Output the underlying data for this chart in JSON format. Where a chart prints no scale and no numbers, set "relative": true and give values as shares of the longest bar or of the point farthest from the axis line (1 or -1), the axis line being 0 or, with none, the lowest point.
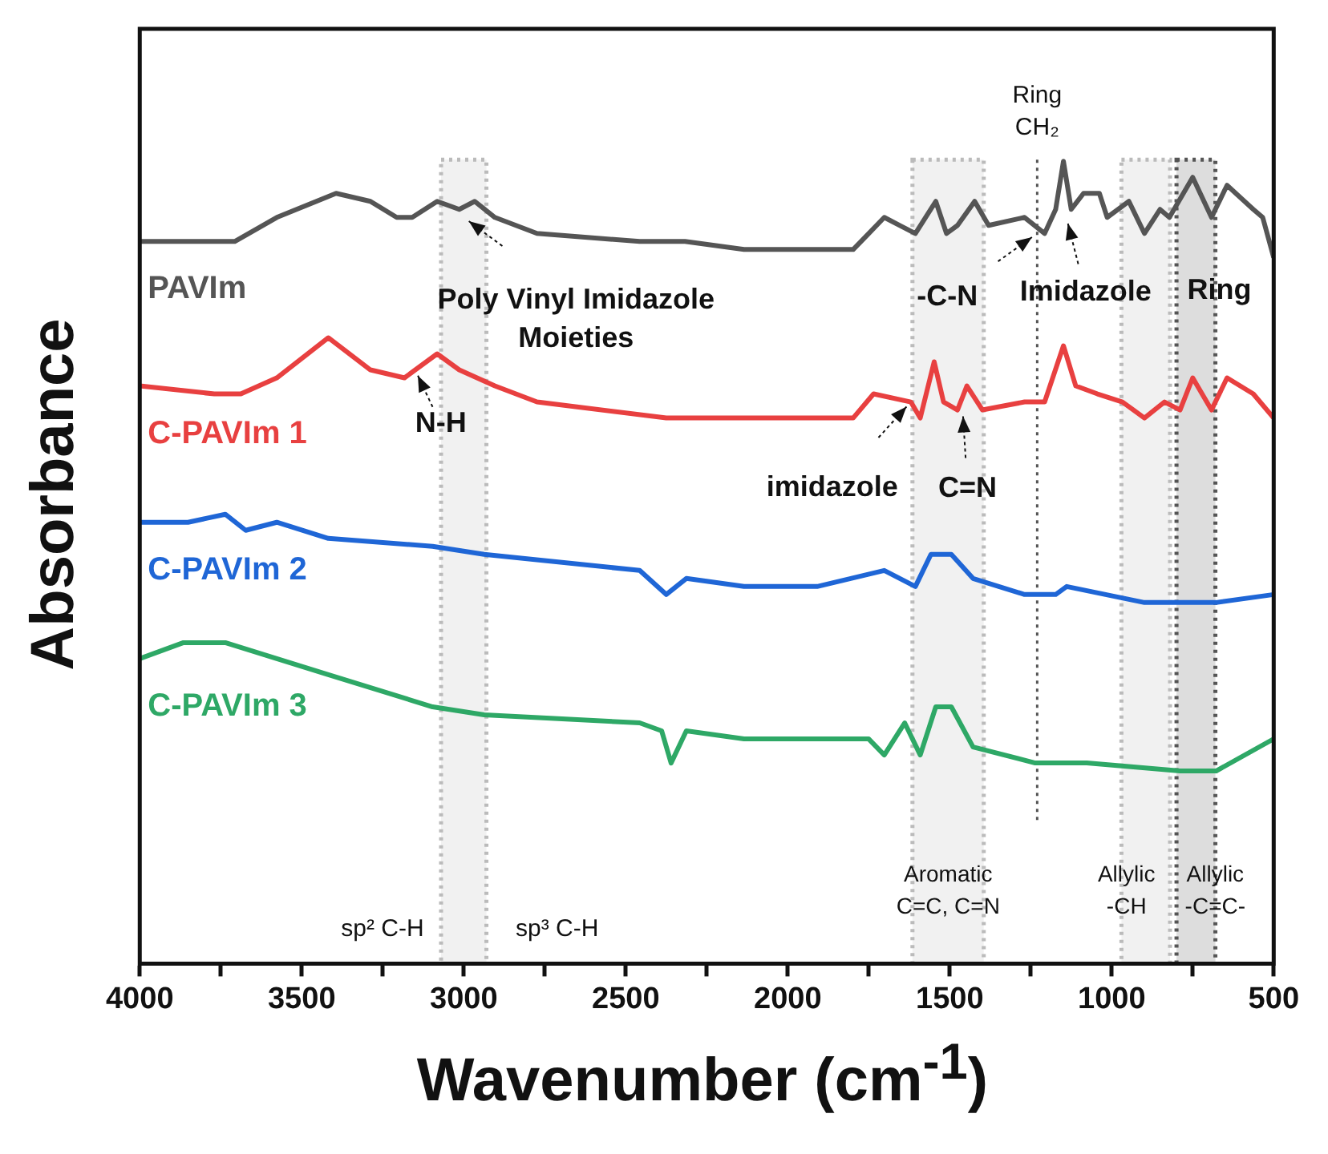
{
  "chart_data": {
    "type": "line",
    "xlabel": "Wavenumber (cm$^{-1}$)",
    "ylabel": "Absorbance",
    "relative": true,
    "legend": false,
    "marker": "none",
    "xlim": [
      4000,
      500
    ],
    "xticks": [
      4000,
      {
        "value": 3750,
        "label": null
      },
      3500,
      {
        "value": 3250,
        "label": null
      },
      3000,
      {
        "value": 2750,
        "label": null
      },
      2500,
      {
        "value": 2250,
        "label": null
      },
      2000,
      {
        "value": 1750,
        "label": null
      },
      1500,
      {
        "value": 1250,
        "label": null
      },
      1000,
      {
        "value": 750,
        "label": null
      },
      500
    ],
    "series": [
      {
        "name": "PAVIm",
        "color": "#555555",
        "x": [
          4000,
          3770,
          3707,
          3577,
          3394,
          3288,
          3207,
          3159,
          3082,
          3014,
          2966,
          2904,
          2774,
          2457,
          2317,
          2135,
          1798,
          1750,
          1702,
          1654,
          1606,
          1543,
          1510,
          1476,
          1423,
          1380,
          1269,
          1207,
          1173,
          1149,
          1125,
          1087,
          1038,
          1014,
          947,
          899,
          851,
          822,
          750,
          692,
          644,
          563,
          534,
          500
        ],
        "values": [
          0.9,
          0.9,
          0.9,
          0.93,
          0.96,
          0.95,
          0.93,
          0.93,
          0.95,
          0.94,
          0.95,
          0.93,
          0.91,
          0.9,
          0.9,
          0.89,
          0.89,
          0.91,
          0.93,
          0.92,
          0.91,
          0.95,
          0.91,
          0.92,
          0.95,
          0.92,
          0.93,
          0.91,
          0.94,
          1.0,
          0.94,
          0.96,
          0.96,
          0.93,
          0.95,
          0.91,
          0.94,
          0.93,
          0.98,
          0.93,
          0.97,
          0.94,
          0.93,
          0.88
        ]
      },
      {
        "name": "C-PAVIm 1",
        "color": "#e84040",
        "x": [
          4000,
          3770,
          3688,
          3577,
          3418,
          3288,
          3183,
          3082,
          3014,
          2904,
          2774,
          2375,
          2327,
          2135,
          1798,
          1735,
          1620,
          1591,
          1548,
          1519,
          1476,
          1447,
          1399,
          1269,
          1207,
          1149,
          1111,
          1044,
          967,
          899,
          837,
          789,
          750,
          692,
          644,
          563,
          500
        ],
        "values": [
          0.72,
          0.71,
          0.71,
          0.73,
          0.78,
          0.74,
          0.73,
          0.76,
          0.74,
          0.72,
          0.7,
          0.68,
          0.68,
          0.68,
          0.68,
          0.71,
          0.7,
          0.68,
          0.75,
          0.7,
          0.69,
          0.72,
          0.69,
          0.7,
          0.7,
          0.77,
          0.72,
          0.71,
          0.7,
          0.68,
          0.7,
          0.69,
          0.73,
          0.69,
          0.73,
          0.71,
          0.68
        ]
      },
      {
        "name": "C-PAVIm 2",
        "color": "#1f66d6",
        "x": [
          4000,
          3899,
          3851,
          3736,
          3673,
          3577,
          3418,
          3096,
          2937,
          2457,
          2375,
          2313,
          2135,
          1909,
          1702,
          1606,
          1558,
          1495,
          1428,
          1269,
          1173,
          1139,
          899,
          789,
          678,
          500
        ],
        "values": [
          0.55,
          0.55,
          0.55,
          0.56,
          0.54,
          0.55,
          0.53,
          0.52,
          0.51,
          0.49,
          0.46,
          0.48,
          0.47,
          0.47,
          0.49,
          0.47,
          0.51,
          0.51,
          0.48,
          0.46,
          0.46,
          0.47,
          0.45,
          0.45,
          0.45,
          0.46
        ]
      },
      {
        "name": "C-PAVIm 3",
        "color": "#2ea866",
        "x": [
          4000,
          3865,
          3736,
          3577,
          3418,
          3096,
          2937,
          2457,
          2389,
          2360,
          2313,
          2135,
          1750,
          1702,
          1639,
          1591,
          1543,
          1495,
          1428,
          1236,
          1173,
          1077,
          789,
          678,
          500
        ],
        "values": [
          0.38,
          0.4,
          0.4,
          0.38,
          0.36,
          0.32,
          0.31,
          0.3,
          0.29,
          0.25,
          0.29,
          0.28,
          0.28,
          0.26,
          0.3,
          0.26,
          0.32,
          0.32,
          0.27,
          0.25,
          0.25,
          0.25,
          0.24,
          0.24,
          0.28
        ]
      }
    ],
    "annotations": [
      {
        "text": "Poly Vinyl Imidazole Moieties",
        "x": 3000,
        "y": 0.93
      },
      {
        "text": "N-H",
        "x": 3150,
        "y": 0.74
      },
      {
        "text": "-C-N",
        "x": 1230,
        "y": 0.91
      },
      {
        "text": "Imidazole",
        "x": 1140,
        "y": 0.93
      },
      "Ring",
      {
        "text": "imidazole",
        "x": 1620,
        "y": 0.7
      },
      {
        "text": "C=N",
        "x": 1460,
        "y": 0.69
      },
      "sp² C-H",
      "sp³ C-H"
    ],
    "ref_lines": [
      {
        "axis": "x",
        "value": 1230,
        "label": "Ring CH₂",
        "color": "#555555",
        "line_style": "dotted"
      }
    ],
    "bands": [
      {
        "axis": "x",
        "from": 3070,
        "to": 2930,
        "color": "#bbbbbb"
      },
      {
        "axis": "x",
        "from": 1615,
        "to": 1395,
        "label": "Aromatic C=C, C=N",
        "color": "#bbbbbb"
      },
      {
        "axis": "x",
        "from": 970,
        "to": 820,
        "label": "Allylic -CH",
        "color": "#bbbbbb"
      },
      {
        "axis": "x",
        "from": 800,
        "to": 680,
        "label": "Allylic -C=C-",
        "color": "#555555"
      }
    ]
  }
}
